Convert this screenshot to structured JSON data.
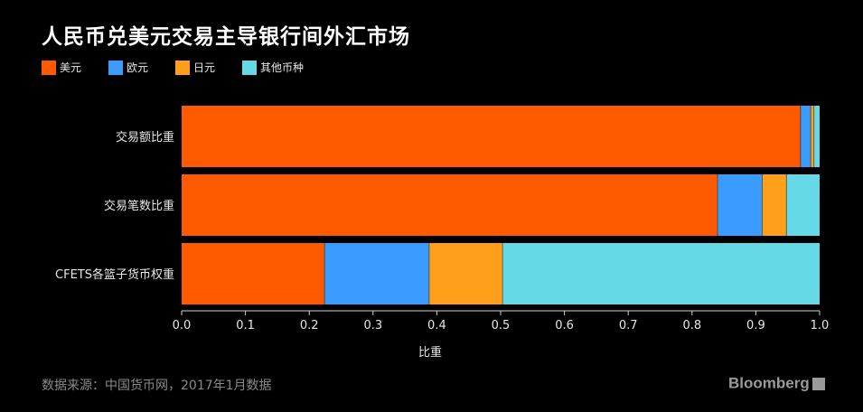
{
  "title": "人民币兑美元交易主导银行间外汇市场",
  "source_note": "数据来源：中国货币网，2017年1月数据",
  "brand": "Bloomberg",
  "chart_data": {
    "type": "bar",
    "orientation": "horizontal",
    "stacked": true,
    "categories": [
      "交易额比重",
      "交易笔数比重",
      "CFETS各篮子货币权重"
    ],
    "series": [
      {
        "name": "美元",
        "color": "#ff5a00",
        "values": [
          0.97,
          0.84,
          0.224
        ]
      },
      {
        "name": "欧元",
        "color": "#3b9cff",
        "values": [
          0.016,
          0.07,
          0.164
        ]
      },
      {
        "name": "日元",
        "color": "#ff9f1a",
        "values": [
          0.005,
          0.038,
          0.115
        ]
      },
      {
        "name": "其他币种",
        "color": "#66d9e6",
        "values": [
          0.009,
          0.052,
          0.497
        ]
      }
    ],
    "xlabel": "比重",
    "ylabel": "",
    "xlim": [
      0,
      1.0
    ],
    "xticks": [
      "0.0",
      "0.1",
      "0.2",
      "0.3",
      "0.4",
      "0.5",
      "0.6",
      "0.7",
      "0.8",
      "0.9",
      "1.0"
    ],
    "legend_position": "top-left",
    "grid": false
  }
}
